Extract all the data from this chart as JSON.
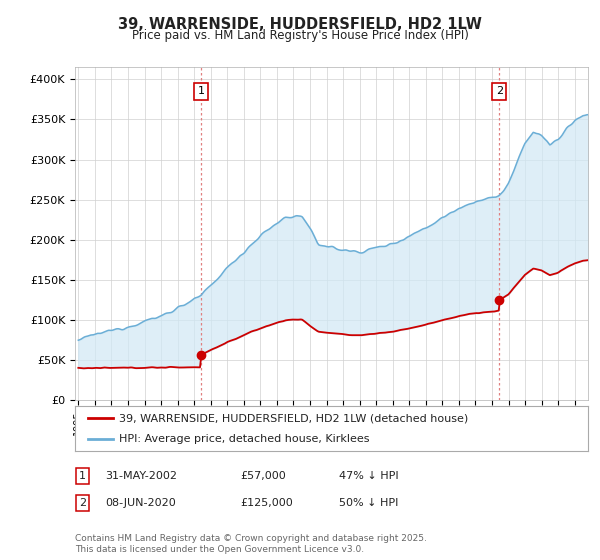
{
  "title": "39, WARRENSIDE, HUDDERSFIELD, HD2 1LW",
  "subtitle": "Price paid vs. HM Land Registry's House Price Index (HPI)",
  "ylabel_ticks": [
    "£0",
    "£50K",
    "£100K",
    "£150K",
    "£200K",
    "£250K",
    "£300K",
    "£350K",
    "£400K"
  ],
  "ytick_vals": [
    0,
    50000,
    100000,
    150000,
    200000,
    250000,
    300000,
    350000,
    400000
  ],
  "ylim": [
    0,
    415000
  ],
  "xlim_start": 1994.8,
  "xlim_end": 2025.8,
  "sale1_x": 2002.42,
  "sale1_y": 57000,
  "sale2_x": 2020.44,
  "sale2_y": 125000,
  "hpi_color": "#6baed6",
  "hpi_fill_color": "#d0e8f5",
  "sale_color": "#cc0000",
  "vline_color": "#e08080",
  "legend_label_sale": "39, WARRENSIDE, HUDDERSFIELD, HD2 1LW (detached house)",
  "legend_label_hpi": "HPI: Average price, detached house, Kirklees",
  "footnote": "Contains HM Land Registry data © Crown copyright and database right 2025.\nThis data is licensed under the Open Government Licence v3.0.",
  "background_color": "#ffffff",
  "figwidth": 6.0,
  "figheight": 5.6,
  "dpi": 100
}
